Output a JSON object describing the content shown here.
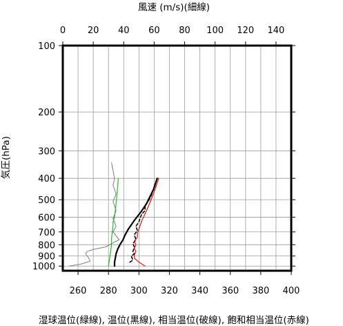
{
  "chart_data": {
    "type": "line",
    "title_top": "風速 (m/s)(細線)",
    "xlabel": "湿球温位(緑線), 温位(黒線), 相当温位(破線), 飽和相当温位(赤線)",
    "ylabel": "気圧(hPa)",
    "x_top_axis": {
      "range": [
        0,
        150
      ],
      "ticks": [
        "0",
        "20",
        "40",
        "60",
        "80",
        "100",
        "120",
        "140"
      ]
    },
    "x_bottom_axis": {
      "range": [
        250,
        400
      ],
      "ticks": [
        "260",
        "280",
        "300",
        "320",
        "340",
        "360",
        "380",
        "400"
      ]
    },
    "y_axis": {
      "scale": "log",
      "range": [
        100,
        1050
      ],
      "ticks": [
        "100",
        "200",
        "300",
        "400",
        "500",
        "600",
        "700",
        "800",
        "900",
        "1000"
      ]
    },
    "grid": true,
    "series": [
      {
        "key": "wind_speed",
        "axis": "top",
        "color": "#707070",
        "points": [
          [
            4,
            1000
          ],
          [
            12,
            980
          ],
          [
            18,
            950
          ],
          [
            17,
            920
          ],
          [
            15,
            880
          ],
          [
            16,
            860
          ],
          [
            20,
            840
          ],
          [
            28,
            820
          ],
          [
            32,
            790
          ],
          [
            37,
            760
          ],
          [
            33,
            700
          ],
          [
            35,
            660
          ],
          [
            33,
            610
          ],
          [
            35,
            560
          ],
          [
            33,
            510
          ],
          [
            35,
            470
          ],
          [
            33,
            430
          ],
          [
            34,
            400
          ],
          [
            33,
            370
          ],
          [
            32,
            340
          ]
        ]
      },
      {
        "key": "wet_bulb_potential_temperature",
        "axis": "bottom",
        "color": "#22bb22",
        "points": [
          [
            280,
            1000
          ],
          [
            280.5,
            950
          ],
          [
            281,
            900
          ],
          [
            281.5,
            850
          ],
          [
            282,
            800
          ],
          [
            282,
            750
          ],
          [
            282.5,
            700
          ],
          [
            283,
            660
          ],
          [
            283,
            630
          ],
          [
            284,
            600
          ],
          [
            284.5,
            560
          ],
          [
            285,
            520
          ],
          [
            285.5,
            480
          ],
          [
            286,
            440
          ],
          [
            286.5,
            400
          ]
        ]
      },
      {
        "key": "potential_temperature",
        "axis": "bottom",
        "color": "#000000",
        "points": [
          [
            284,
            1000
          ],
          [
            284,
            960
          ],
          [
            284.5,
            920
          ],
          [
            285,
            880
          ],
          [
            286,
            840
          ],
          [
            287.5,
            800
          ],
          [
            289.5,
            760
          ],
          [
            291,
            720
          ],
          [
            293,
            680
          ],
          [
            295,
            650
          ],
          [
            297,
            620
          ],
          [
            299.5,
            590
          ],
          [
            302,
            560
          ],
          [
            305,
            520
          ],
          [
            307.5,
            480
          ],
          [
            309.5,
            450
          ],
          [
            312,
            400
          ]
        ]
      },
      {
        "key": "equivalent_potential_temperature",
        "axis": "bottom",
        "color": "#000000",
        "dashed": true,
        "points": [
          [
            294,
            960
          ],
          [
            296,
            940
          ],
          [
            295,
            900
          ],
          [
            297,
            880
          ],
          [
            296,
            860
          ],
          [
            297,
            820
          ],
          [
            296,
            790
          ],
          [
            298,
            760
          ],
          [
            297,
            720
          ],
          [
            299,
            690
          ],
          [
            298,
            660
          ],
          [
            300,
            630
          ],
          [
            301,
            600
          ],
          [
            302,
            580
          ],
          [
            304,
            560
          ],
          [
            304,
            530
          ],
          [
            306,
            510
          ],
          [
            308,
            480
          ],
          [
            310,
            440
          ],
          [
            312,
            400
          ]
        ]
      },
      {
        "key": "saturated_equivalent_potential_temperature",
        "axis": "bottom",
        "color": "#dd1111",
        "points": [
          [
            304,
            1000
          ],
          [
            300,
            960
          ],
          [
            297,
            920
          ],
          [
            297,
            890
          ],
          [
            298,
            860
          ],
          [
            297,
            830
          ],
          [
            298,
            800
          ],
          [
            297,
            770
          ],
          [
            299,
            740
          ],
          [
            299,
            710
          ],
          [
            300,
            680
          ],
          [
            301,
            650
          ],
          [
            302,
            620
          ],
          [
            304,
            580
          ],
          [
            306,
            540
          ],
          [
            308,
            500
          ],
          [
            310,
            460
          ],
          [
            312,
            420
          ],
          [
            313,
            400
          ]
        ]
      }
    ]
  }
}
